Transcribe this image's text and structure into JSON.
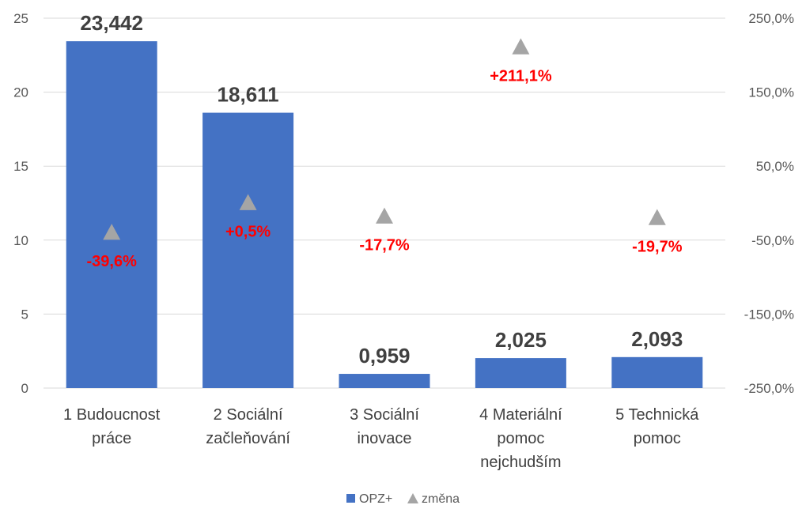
{
  "chart_data": {
    "type": "bar",
    "categories": [
      [
        "1 Budoucnost",
        "práce"
      ],
      [
        "2 Sociální",
        "začleňování"
      ],
      [
        "3 Sociální",
        "inovace"
      ],
      [
        "4 Materiální",
        "pomoc",
        "nejchudším"
      ],
      [
        "5 Technická",
        "pomoc"
      ]
    ],
    "series": [
      {
        "name": "OPZ+",
        "type": "bar",
        "axis": "left",
        "color": "#4472C4",
        "values": [
          23.442,
          18.611,
          0.959,
          2.025,
          2.093
        ],
        "labels": [
          "23,442",
          "18,611",
          "0,959",
          "2,025",
          "2,093"
        ]
      },
      {
        "name": "změna",
        "type": "marker",
        "marker": "triangle",
        "axis": "right",
        "color": "#A5A5A5",
        "values": [
          -39.6,
          0.5,
          -17.7,
          211.1,
          -19.7
        ],
        "labels": [
          "-39,6%",
          "+0,5%",
          "-17,7%",
          "+211,1%",
          "-19,7%"
        ],
        "label_color": "#FF0000"
      }
    ],
    "y_left": {
      "min": 0,
      "max": 25,
      "ticks": [
        0,
        5,
        10,
        15,
        20,
        25
      ],
      "tick_labels": [
        "0",
        "5",
        "10",
        "15",
        "20",
        "25"
      ]
    },
    "y_right": {
      "min": -250,
      "max": 250,
      "ticks": [
        -250,
        -150,
        -50,
        50,
        150,
        250
      ],
      "tick_labels": [
        "-250,0%",
        "-150,0%",
        "-50,0%",
        "50,0%",
        "150,0%",
        "250,0%"
      ]
    },
    "grid": true,
    "legend": "bottom-center"
  }
}
